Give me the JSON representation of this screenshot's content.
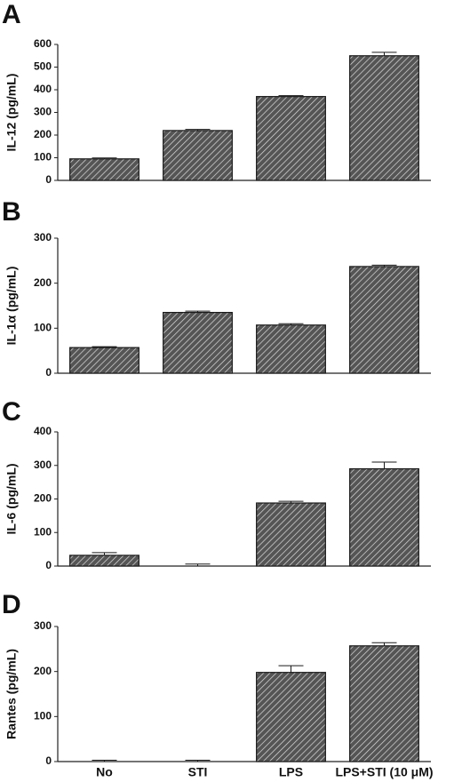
{
  "chart_data": [
    {
      "type": "bar",
      "title": "A",
      "y_label": "IL-12 (pg/mL)",
      "categories": [
        null,
        null,
        null,
        null
      ],
      "values": [
        95,
        220,
        370,
        550
      ],
      "errors": [
        4,
        5,
        4,
        15
      ],
      "color": "#1a1a1a",
      "ylim": [
        0,
        600
      ],
      "yticks": [
        0,
        100,
        200,
        300,
        400,
        500,
        600
      ]
    },
    {
      "type": "bar",
      "title": "B",
      "y_label": "IL-1α (pg/mL)",
      "categories": [
        null,
        null,
        null,
        null
      ],
      "values": [
        57,
        135,
        107,
        237
      ],
      "errors": [
        2,
        3,
        3,
        3
      ],
      "color": "#1a1a1a",
      "ylim": [
        0,
        300
      ],
      "yticks": [
        0,
        100,
        200,
        300
      ]
    },
    {
      "type": "bar",
      "title": "C",
      "y_label": "IL-6 (pg/mL)",
      "categories": [
        null,
        null,
        null,
        null
      ],
      "values": [
        32,
        0,
        188,
        290
      ],
      "errors": [
        8,
        6,
        5,
        20
      ],
      "color": "#1a1a1a",
      "ylim": [
        0,
        400
      ],
      "yticks": [
        0,
        100,
        200,
        300,
        400
      ]
    },
    {
      "type": "bar",
      "title": "D",
      "y_label": "Rantes (pg/mL)",
      "categories": [
        "No",
        "STI",
        "LPS",
        "LPS+STI (10 μM)"
      ],
      "values": [
        0,
        0,
        198,
        257
      ],
      "errors": [
        3,
        3,
        15,
        7
      ],
      "color": "#1a1a1a",
      "ylim": [
        0,
        300
      ],
      "yticks": [
        0,
        100,
        200,
        300
      ]
    }
  ]
}
